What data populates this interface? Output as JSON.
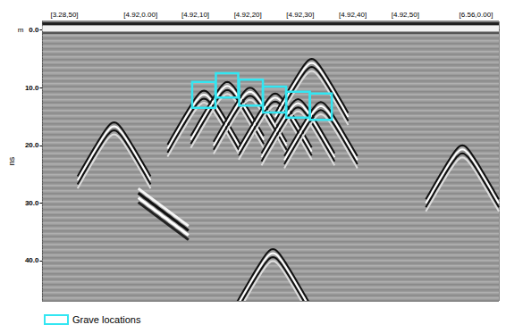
{
  "chart_data": {
    "type": "radargram",
    "x_label": "m",
    "y_label": "ns",
    "xlim": [
      0,
      100
    ],
    "xticks": [
      {
        "value": 4.8,
        "label": "[3.28,50]"
      },
      {
        "value": 21.5,
        "label": "[4.92,0.00]"
      },
      {
        "value": 33.5,
        "label": "[4.92,10]"
      },
      {
        "value": 45,
        "label": "[4.92,20]"
      },
      {
        "value": 56.5,
        "label": "[4.92,30]"
      },
      {
        "value": 68,
        "label": "[4.92,40]"
      },
      {
        "value": 79.5,
        "label": "[4.92,50]"
      },
      {
        "value": 95,
        "label": "[6.56,0.00]"
      }
    ],
    "ylim": [
      -1.5,
      47
    ],
    "yticks": [
      {
        "value": 0,
        "label": "0.0"
      },
      {
        "value": 10,
        "label": "10.0"
      },
      {
        "value": 20,
        "label": "20.0"
      },
      {
        "value": 30,
        "label": "30.0"
      },
      {
        "value": 40,
        "label": "40.0"
      }
    ],
    "grid": false,
    "legend": "lower left",
    "series": [
      {
        "name": "Grave locations",
        "type": "boxes",
        "color": "#33e6f2",
        "boxes": [
          {
            "x": [
              32.8,
              37.9
            ],
            "t": [
              9.0,
              13.5
            ]
          },
          {
            "x": [
              38.0,
              42.9
            ],
            "t": [
              7.5,
              11.7
            ]
          },
          {
            "x": [
              43.1,
              48.3
            ],
            "t": [
              8.6,
              13.1
            ]
          },
          {
            "x": [
              48.3,
              53.4
            ],
            "t": [
              9.8,
              14.3
            ]
          },
          {
            "x": [
              53.4,
              58.6
            ],
            "t": [
              10.7,
              15.2
            ]
          },
          {
            "x": [
              58.6,
              63.4
            ],
            "t": [
              11.0,
              15.6
            ]
          }
        ]
      }
    ],
    "reflections": [
      {
        "x": 15.7,
        "t": 16
      },
      {
        "x": 35.4,
        "t": 10.5
      },
      {
        "x": 40.5,
        "t": 9
      },
      {
        "x": 45.5,
        "t": 10
      },
      {
        "x": 51,
        "t": 11
      },
      {
        "x": 56,
        "t": 12
      },
      {
        "x": 61,
        "t": 12.5
      },
      {
        "x": 59,
        "t": 5
      },
      {
        "x": 50.5,
        "t": 38
      },
      {
        "x": 92,
        "t": 20
      }
    ],
    "reflectors": [
      {
        "x": [
          21,
          32
        ],
        "t": [
          27.5,
          34
        ]
      }
    ]
  }
}
